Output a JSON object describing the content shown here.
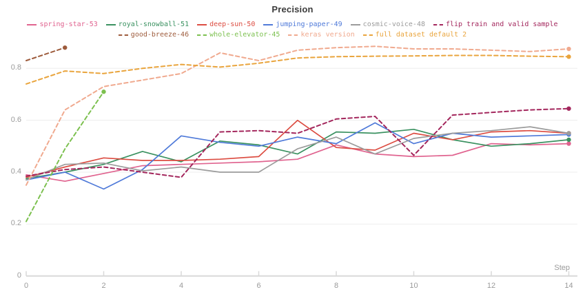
{
  "title": "Precision",
  "axis": {
    "x_label": "Step",
    "x_ticks": [
      0,
      2,
      4,
      6,
      8,
      10,
      12,
      14
    ],
    "y_ticks": [
      0,
      0.2,
      0.4,
      0.6,
      0.8
    ]
  },
  "chart_data": {
    "type": "line",
    "title": "Precision",
    "xlabel": "Step",
    "ylabel": "",
    "xlim": [
      0,
      14
    ],
    "ylim": [
      0,
      1.06
    ],
    "grid": "horizontal",
    "legend_position": "top",
    "x_ticks": [
      0,
      2,
      4,
      6,
      8,
      10,
      12,
      14
    ],
    "y_ticks": [
      0,
      0.2,
      0.4,
      0.6,
      0.8
    ],
    "series": [
      {
        "name": "spring-star-53",
        "color": "#e0638f",
        "dashed": false,
        "x": [
          0,
          1,
          2,
          3,
          4,
          5,
          6,
          7,
          8,
          9,
          10,
          11,
          12,
          13,
          14
        ],
        "values": [
          0.39,
          0.365,
          0.395,
          0.425,
          0.43,
          0.435,
          0.44,
          0.45,
          0.505,
          0.47,
          0.46,
          0.465,
          0.51,
          0.505,
          0.51
        ]
      },
      {
        "name": "royal-snowball-51",
        "color": "#3a9160",
        "dashed": false,
        "x": [
          0,
          1,
          2,
          3,
          4,
          5,
          6,
          7,
          8,
          9,
          10,
          11,
          12,
          13,
          14
        ],
        "values": [
          0.375,
          0.4,
          0.43,
          0.48,
          0.44,
          0.52,
          0.505,
          0.47,
          0.555,
          0.55,
          0.565,
          0.525,
          0.5,
          0.51,
          0.525
        ]
      },
      {
        "name": "deep-sun-50",
        "color": "#dc4c41",
        "dashed": false,
        "x": [
          0,
          1,
          2,
          3,
          4,
          5,
          6,
          7,
          8,
          9,
          10,
          11,
          12,
          13,
          14
        ],
        "values": [
          0.38,
          0.42,
          0.455,
          0.445,
          0.445,
          0.45,
          0.46,
          0.6,
          0.495,
          0.485,
          0.55,
          0.525,
          0.555,
          0.56,
          0.55
        ]
      },
      {
        "name": "jumping-paper-49",
        "color": "#4f7ad9",
        "dashed": false,
        "x": [
          0,
          1,
          2,
          3,
          4,
          5,
          6,
          7,
          8,
          9,
          10,
          11,
          12,
          13,
          14
        ],
        "values": [
          0.37,
          0.4,
          0.335,
          0.41,
          0.54,
          0.515,
          0.5,
          0.535,
          0.51,
          0.59,
          0.51,
          0.55,
          0.535,
          0.54,
          0.545
        ]
      },
      {
        "name": "cosmic-voice-48",
        "color": "#9b9b9b",
        "dashed": false,
        "x": [
          0,
          1,
          2,
          3,
          4,
          5,
          6,
          7,
          8,
          9,
          10,
          11,
          12,
          13,
          14
        ],
        "values": [
          0.37,
          0.43,
          0.435,
          0.405,
          0.42,
          0.4,
          0.4,
          0.49,
          0.535,
          0.47,
          0.53,
          0.55,
          0.56,
          0.575,
          0.55
        ]
      },
      {
        "name": "flip train and valid sample",
        "color": "#a3265c",
        "dashed": true,
        "x": [
          0,
          1,
          2,
          3,
          4,
          5,
          6,
          7,
          8,
          9,
          10,
          11,
          12,
          13,
          14
        ],
        "values": [
          0.385,
          0.41,
          0.42,
          0.4,
          0.38,
          0.555,
          0.56,
          0.55,
          0.605,
          0.615,
          0.465,
          0.62,
          0.63,
          0.64,
          0.645
        ]
      },
      {
        "name": "good-breeze-46",
        "color": "#9d5b3c",
        "dashed": true,
        "x": [
          0,
          1
        ],
        "values": [
          0.83,
          0.88
        ]
      },
      {
        "name": "whole-elevator-45",
        "color": "#7cc04f",
        "dashed": true,
        "x": [
          0,
          1,
          2
        ],
        "values": [
          0.21,
          0.49,
          0.71
        ]
      },
      {
        "name": "keras version",
        "color": "#f0a98e",
        "dashed": true,
        "x": [
          0,
          1,
          2,
          3,
          4,
          5,
          6,
          7,
          8,
          9,
          10,
          11,
          12,
          13,
          14
        ],
        "values": [
          0.35,
          0.64,
          0.73,
          0.755,
          0.78,
          0.86,
          0.83,
          0.87,
          0.88,
          0.885,
          0.875,
          0.875,
          0.87,
          0.865,
          0.875
        ]
      },
      {
        "name": "full dataset default 2",
        "color": "#e9a43c",
        "dashed": true,
        "x": [
          0,
          1,
          2,
          3,
          4,
          5,
          6,
          7,
          8,
          9,
          10,
          11,
          12,
          13,
          14
        ],
        "values": [
          0.74,
          0.79,
          0.78,
          0.8,
          0.815,
          0.805,
          0.82,
          0.84,
          0.845,
          0.847,
          0.848,
          0.85,
          0.85,
          0.847,
          0.845
        ]
      }
    ],
    "legend_order": [
      "spring-star-53",
      "royal-snowball-51",
      "deep-sun-50",
      "jumping-paper-49",
      "cosmic-voice-48",
      "flip train and valid sample",
      "good-breeze-46",
      "whole-elevator-45",
      "keras version",
      "full dataset default 2"
    ]
  }
}
